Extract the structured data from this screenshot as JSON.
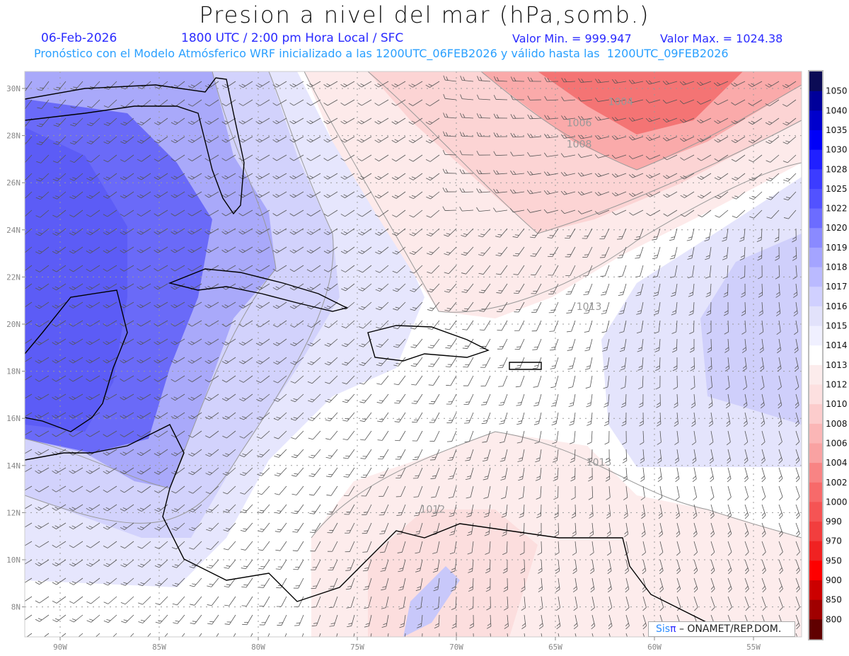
{
  "header": {
    "title": "Presion a nivel del mar (hPa,somb.)",
    "date": "06-Feb-2026",
    "time": "1800 UTC / 2:00 pm Hora Local / SFC",
    "min_label": "Valor Min. = 999.947",
    "max_label": "Valor Max. = 1024.38",
    "description": "Pronóstico con el Modelo Atmósferico WRF inicializado a las 1200UTC_06FEB2026 y válido hasta las  1200UTC_09FEB2026"
  },
  "axes": {
    "lat_labels": [
      "30N",
      "28N",
      "26N",
      "24N",
      "22N",
      "20N",
      "18N",
      "16N",
      "14N",
      "12N",
      "10N",
      "8N"
    ],
    "lat_values": [
      30,
      28,
      26,
      24,
      22,
      20,
      18,
      16,
      14,
      12,
      10,
      8
    ],
    "lon_labels": [
      "90W",
      "85W",
      "80W",
      "75W",
      "70W",
      "65W",
      "60W",
      "55W"
    ],
    "lon_values": [
      -90,
      -85,
      -80,
      -75,
      -70,
      -65,
      -60,
      -55
    ]
  },
  "contour_labels": [
    {
      "text": "1004",
      "lon": -61.7,
      "lat": 29.3
    },
    {
      "text": "1006",
      "lon": -63.8,
      "lat": 28.4
    },
    {
      "text": "1008",
      "lon": -63.8,
      "lat": 27.5
    },
    {
      "text": "1013",
      "lon": -63.3,
      "lat": 20.6
    },
    {
      "text": "1013",
      "lon": -62.8,
      "lat": 14.0
    },
    {
      "text": "1012",
      "lon": -71.2,
      "lat": 12.0
    }
  ],
  "colorbar": {
    "labels": [
      "1050",
      "1040",
      "1035",
      "1030",
      "1028",
      "1025",
      "1022",
      "1020",
      "1019",
      "1018",
      "1017",
      "1016",
      "1015",
      "1014",
      "1013",
      "1012",
      "1010",
      "1008",
      "1006",
      "1004",
      "1002",
      "1000",
      "990",
      "970",
      "950",
      "900",
      "850",
      "800"
    ],
    "colors": [
      "#0b0b55",
      "#00009a",
      "#0000cc",
      "#0000f8",
      "#2020ff",
      "#3c3cff",
      "#5252ff",
      "#6c6cff",
      "#8a8aff",
      "#a4a4ff",
      "#babaff",
      "#d0d0ff",
      "#e2e2fb",
      "#f0f0ff",
      "#ffffff",
      "#fcecec",
      "#fde0e0",
      "#fccccc",
      "#fbb6b6",
      "#f9a2a2",
      "#f88484",
      "#f76a6a",
      "#f55454",
      "#f23e3e",
      "#f02222",
      "#fe0000",
      "#cc0000",
      "#a00000",
      "#600000"
    ]
  },
  "credit": {
    "brand": "Sis",
    "brand_symbol": "π",
    "text": " – ONAMET/REP.DOM."
  }
}
